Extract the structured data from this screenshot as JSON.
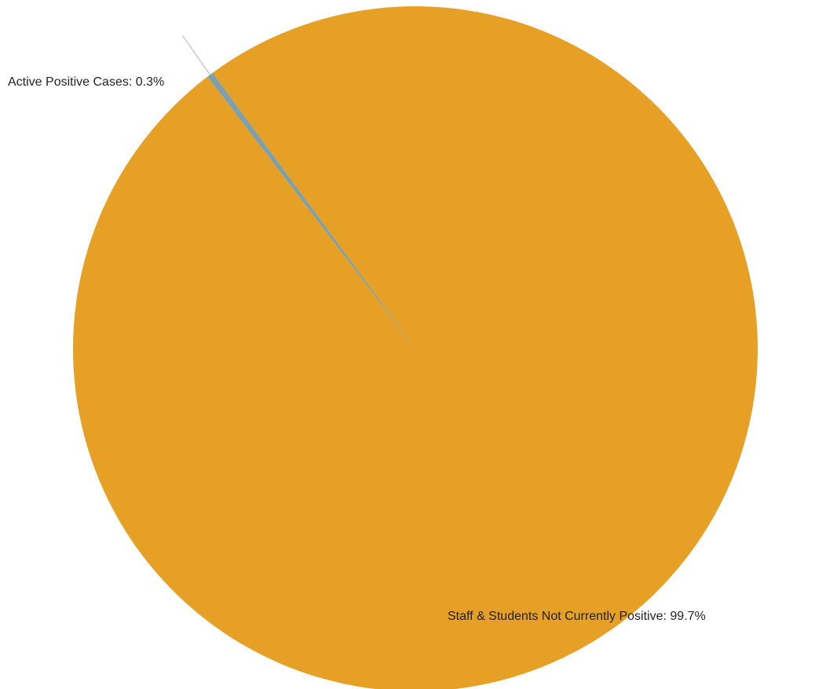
{
  "chart_data": {
    "type": "pie",
    "title": "",
    "slices": [
      {
        "name": "Active Positive Cases",
        "value": 0.3,
        "label": "Active Positive Cases: 0.3%",
        "color": "#7f9faa"
      },
      {
        "name": "Staff & Students Not Currently Positive",
        "value": 99.7,
        "label": "Staff & Students Not Currently Positive: 99.7%",
        "color": "#e6a026"
      }
    ],
    "legend": "none",
    "data_labels": "outside"
  }
}
